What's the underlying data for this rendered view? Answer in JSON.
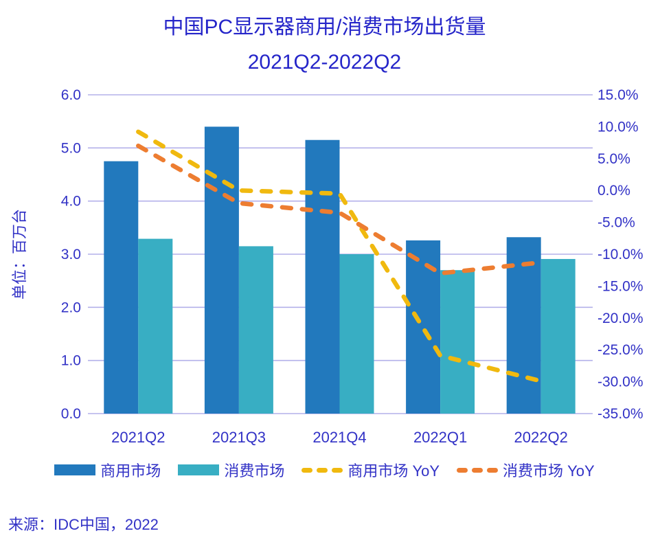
{
  "title": {
    "line1": "中国PC显示器商用/消费市场出货量",
    "line2": "2021Q2-2022Q2"
  },
  "source": "来源：IDC中国，2022",
  "colors": {
    "title_text": "#2525c9",
    "axis_text": "#3232c6",
    "gridline": "#b3b0ea",
    "commercial_bar": "#2279bd",
    "consumer_bar": "#38aec3",
    "commercial_yoy_line": "#f0b90f",
    "consumer_yoy_line": "#ed7d31"
  },
  "chart_data": {
    "type": "bar",
    "subtype": "grouped bars with dashed YoY lines (combo chart, dual axis)",
    "title": "中国PC显示器商用/消费市场出货量 2021Q2-2022Q2",
    "categories": [
      "2021Q2",
      "2021Q3",
      "2021Q4",
      "2022Q1",
      "2022Q2"
    ],
    "series": [
      {
        "name": "商用市场",
        "kind": "bar",
        "axis": "left",
        "unit": "百万台",
        "color": "#2279bd",
        "values": [
          4.75,
          5.4,
          5.15,
          3.26,
          3.32
        ]
      },
      {
        "name": "消费市场",
        "kind": "bar",
        "axis": "left",
        "unit": "百万台",
        "color": "#38aec3",
        "values": [
          3.29,
          3.15,
          3.0,
          2.7,
          2.91
        ]
      },
      {
        "name": "商用市场 YoY",
        "kind": "dashed-line",
        "axis": "right",
        "unit": "%",
        "color": "#f0b90f",
        "values": [
          9.2,
          0.0,
          -0.5,
          -25.9,
          -29.9
        ]
      },
      {
        "name": "消费市场 YoY",
        "kind": "dashed-line",
        "axis": "right",
        "unit": "%",
        "color": "#ed7d31",
        "values": [
          7.0,
          -2.0,
          -3.5,
          -13.0,
          -11.3
        ]
      }
    ],
    "left_axis": {
      "label": "单位：百万台",
      "min": 0,
      "max": 6,
      "step": 1,
      "tick_labels": [
        "0.0",
        "1.0",
        "2.0",
        "3.0",
        "4.0",
        "5.0",
        "6.0"
      ]
    },
    "right_axis": {
      "label": "",
      "min": -35,
      "max": 15,
      "step": 5,
      "tick_labels": [
        "-35.0%",
        "-30.0%",
        "-25.0%",
        "-20.0%",
        "-15.0%",
        "-10.0%",
        "-5.0%",
        "0.0%",
        "5.0%",
        "10.0%",
        "15.0%"
      ]
    },
    "grid": "horizontal gridlines on left-axis ticks",
    "legend_position": "bottom"
  }
}
